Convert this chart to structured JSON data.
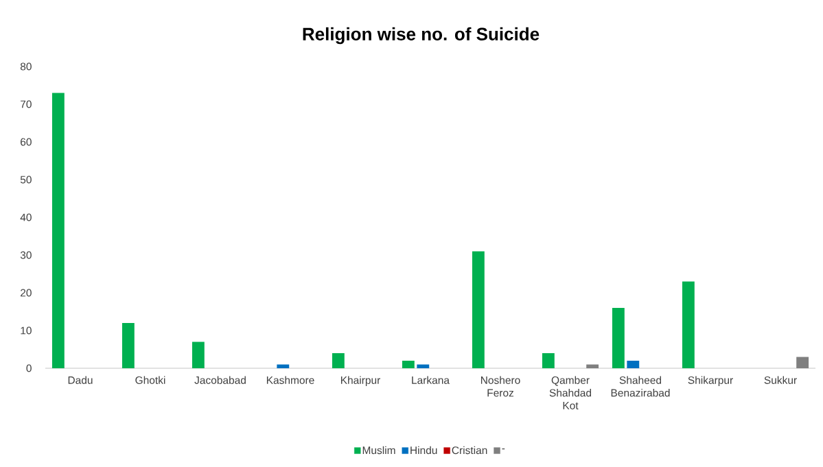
{
  "chart_data": {
    "type": "bar",
    "title": "Religion wise no. of Suicide",
    "categories": [
      "Dadu",
      "Ghotki",
      "Jacobabad",
      "Kashmore",
      "Khairpur",
      "Larkana",
      "Noshero Feroz",
      "Qamber Shahdad Kot",
      "Shaheed Benazirabad",
      "Shikarpur",
      "Sukkur"
    ],
    "series": [
      {
        "name": "Muslim",
        "color": "#00b050",
        "values": [
          73,
          12,
          7,
          null,
          4,
          2,
          31,
          4,
          16,
          23,
          null
        ]
      },
      {
        "name": "Hindu",
        "color": "#0070c0",
        "values": [
          null,
          null,
          null,
          1,
          null,
          1,
          null,
          null,
          2,
          null,
          null
        ]
      },
      {
        "name": "Cristian",
        "color": "#c00000",
        "values": [
          null,
          null,
          null,
          null,
          null,
          null,
          null,
          null,
          null,
          null,
          null
        ]
      },
      {
        "name": "-",
        "color": "#7f7f7f",
        "values": [
          null,
          null,
          null,
          null,
          null,
          null,
          null,
          1,
          null,
          null,
          3
        ]
      }
    ],
    "ylim": [
      0,
      80
    ],
    "yticks": [
      0,
      10,
      20,
      30,
      40,
      50,
      60,
      70,
      80
    ],
    "legend": "bottom"
  }
}
